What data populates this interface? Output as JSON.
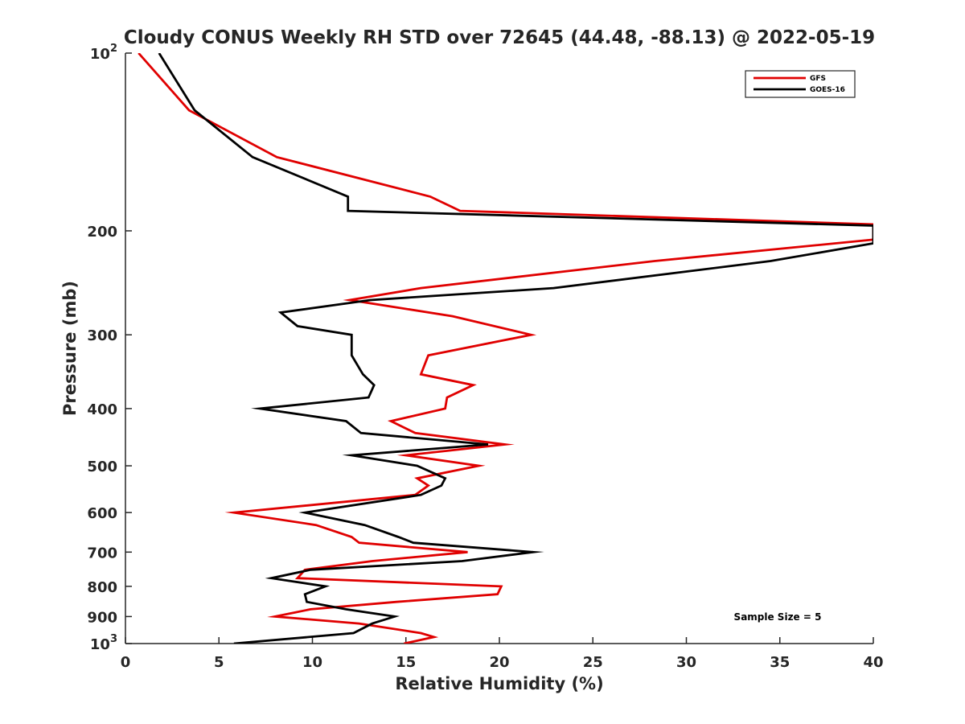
{
  "chart_data": {
    "type": "line",
    "title": "Cloudy CONUS Weekly RH STD over 72645 (44.48, -88.13) @ 2022-05-19",
    "xlabel": "Relative Humidity (%)",
    "ylabel": "Pressure (mb)",
    "xlim": [
      0,
      40
    ],
    "ylim": [
      100,
      1000
    ],
    "y_scale": "log",
    "y_reversed": true,
    "grid": false,
    "legend_position": "top-right",
    "annotation": "Sample Size = 5",
    "x_ticks": [
      0,
      5,
      10,
      15,
      20,
      25,
      30,
      35,
      40
    ],
    "x_tick_labels": [
      "0",
      "5",
      "10",
      "15",
      "20",
      "25",
      "30",
      "35",
      "40"
    ],
    "y_ticks": [
      {
        "value": 100,
        "base": "10",
        "exp": "2"
      },
      {
        "value": 200,
        "label": "200"
      },
      {
        "value": 300,
        "label": "300"
      },
      {
        "value": 400,
        "label": "400"
      },
      {
        "value": 500,
        "label": "500"
      },
      {
        "value": 600,
        "label": "600"
      },
      {
        "value": 700,
        "label": "700"
      },
      {
        "value": 800,
        "label": "800"
      },
      {
        "value": 900,
        "label": "900"
      },
      {
        "value": 1000,
        "base": "10",
        "exp": "3"
      }
    ],
    "series": [
      {
        "name": "GFS",
        "color": "#e00000",
        "points": [
          [
            0.7,
            100
          ],
          [
            3.4,
            125
          ],
          [
            8.1,
            150
          ],
          [
            16.3,
            175
          ],
          [
            17.9,
            185
          ],
          [
            40.0,
            195
          ],
          [
            40.0,
            207
          ],
          [
            28.3,
            225
          ],
          [
            15.8,
            250
          ],
          [
            12.0,
            262
          ],
          [
            17.5,
            279
          ],
          [
            21.7,
            300
          ],
          [
            16.2,
            325
          ],
          [
            15.8,
            350
          ],
          [
            18.6,
            365
          ],
          [
            17.2,
            383
          ],
          [
            17.1,
            400
          ],
          [
            14.2,
            420
          ],
          [
            15.5,
            440
          ],
          [
            20.3,
            460
          ],
          [
            15.0,
            480
          ],
          [
            18.9,
            500
          ],
          [
            15.6,
            525
          ],
          [
            16.2,
            540
          ],
          [
            15.5,
            560
          ],
          [
            5.8,
            600
          ],
          [
            10.2,
            630
          ],
          [
            12.1,
            660
          ],
          [
            12.5,
            675
          ],
          [
            18.3,
            700
          ],
          [
            13.2,
            725
          ],
          [
            9.6,
            750
          ],
          [
            9.2,
            775
          ],
          [
            20.1,
            800
          ],
          [
            19.9,
            825
          ],
          [
            14.5,
            850
          ],
          [
            9.9,
            875
          ],
          [
            8.0,
            900
          ],
          [
            12.5,
            925
          ],
          [
            15.8,
            960
          ],
          [
            16.5,
            975
          ],
          [
            14.9,
            1000
          ]
        ]
      },
      {
        "name": "GOES-16",
        "color": "#000000",
        "points": [
          [
            1.8,
            100
          ],
          [
            3.7,
            125
          ],
          [
            6.8,
            150
          ],
          [
            11.9,
            175
          ],
          [
            11.9,
            185
          ],
          [
            40.0,
            196
          ],
          [
            40.0,
            210
          ],
          [
            34.5,
            225
          ],
          [
            22.9,
            250
          ],
          [
            13.1,
            262
          ],
          [
            8.3,
            275
          ],
          [
            9.2,
            290
          ],
          [
            12.1,
            300
          ],
          [
            12.1,
            325
          ],
          [
            12.7,
            350
          ],
          [
            13.3,
            365
          ],
          [
            13.0,
            383
          ],
          [
            7.2,
            400
          ],
          [
            11.8,
            420
          ],
          [
            12.6,
            440
          ],
          [
            19.4,
            460
          ],
          [
            12.1,
            480
          ],
          [
            15.6,
            500
          ],
          [
            17.1,
            525
          ],
          [
            16.9,
            540
          ],
          [
            15.8,
            560
          ],
          [
            9.6,
            600
          ],
          [
            12.8,
            630
          ],
          [
            14.6,
            660
          ],
          [
            15.4,
            675
          ],
          [
            21.8,
            700
          ],
          [
            18.0,
            725
          ],
          [
            9.9,
            750
          ],
          [
            7.8,
            775
          ],
          [
            10.7,
            800
          ],
          [
            9.6,
            825
          ],
          [
            9.7,
            850
          ],
          [
            11.8,
            875
          ],
          [
            14.4,
            900
          ],
          [
            13.2,
            925
          ],
          [
            12.2,
            960
          ],
          [
            5.8,
            1000
          ]
        ]
      }
    ]
  }
}
